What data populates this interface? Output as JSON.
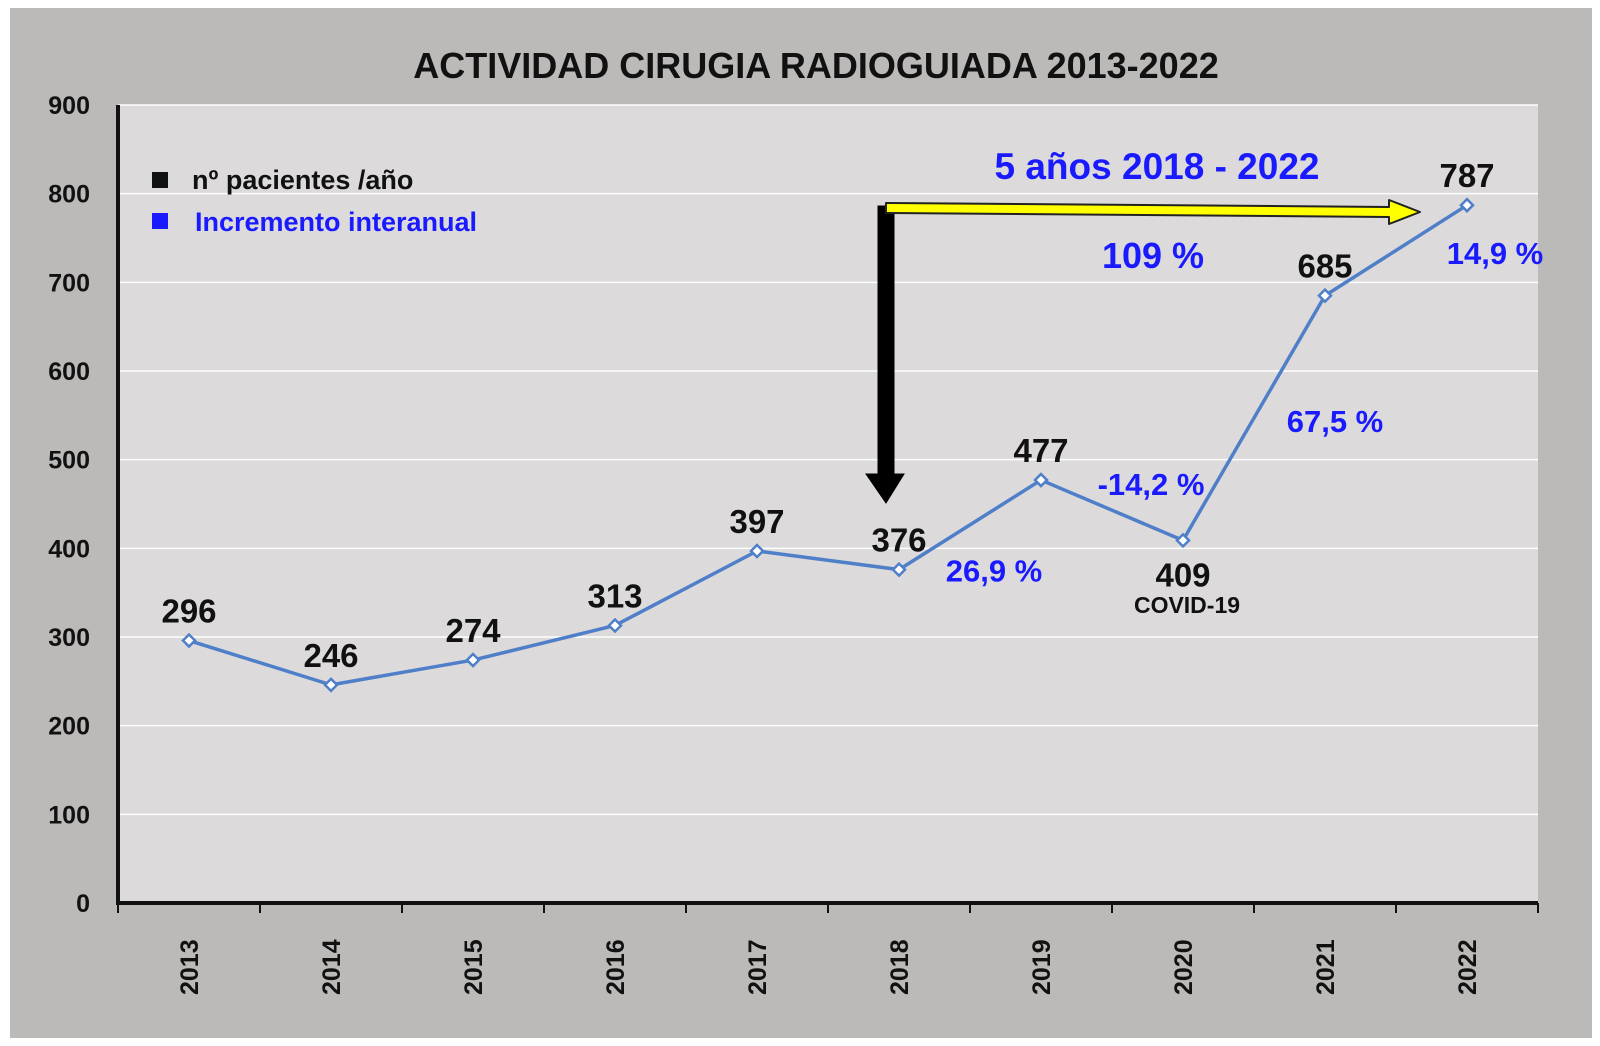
{
  "chart_data": {
    "type": "line",
    "title": "ACTIVIDAD CIRUGIA RADIOGUIADA  2013-2022",
    "categories": [
      "2013",
      "2014",
      "2015",
      "2016",
      "2017",
      "2018",
      "2019",
      "2020",
      "2021",
      "2022"
    ],
    "series": [
      {
        "name": "nº pacientes /año",
        "values": [
          296,
          246,
          274,
          313,
          397,
          376,
          477,
          409,
          685,
          787
        ],
        "color": "#4f7fc9"
      }
    ],
    "value_labels": [
      "296",
      "246",
      "274",
      "313",
      "397",
      "376",
      "477",
      "409",
      "685",
      "787"
    ],
    "ylim": [
      0,
      900
    ],
    "yticks": [
      0,
      100,
      200,
      300,
      400,
      500,
      600,
      700,
      800,
      900
    ],
    "grid": true,
    "legend": {
      "placement": "top-left",
      "items": [
        {
          "label": "nº pacientes /año",
          "color": "#111111"
        },
        {
          "label": "Incremento interanual",
          "color": "#1a1aff"
        }
      ]
    },
    "annotations": {
      "increments": [
        {
          "after_year": "2019",
          "text": "26,9 %"
        },
        {
          "after_year": "2020",
          "text": "-14,2 %"
        },
        {
          "after_year": "2021",
          "text": "67,5 %"
        },
        {
          "after_year": "2022",
          "text": "14,9 %"
        }
      ],
      "covid_note": "COVID-19",
      "period_label": "5 años 2018 - 2022",
      "period_increase": "109 %"
    }
  },
  "colors": {
    "plot_bg": "#dcdada",
    "outer_bg": "#bcbab8",
    "line": "#4f7fc9",
    "increment_text": "#1a1aff",
    "arrow_yellow": "#ffff00"
  }
}
